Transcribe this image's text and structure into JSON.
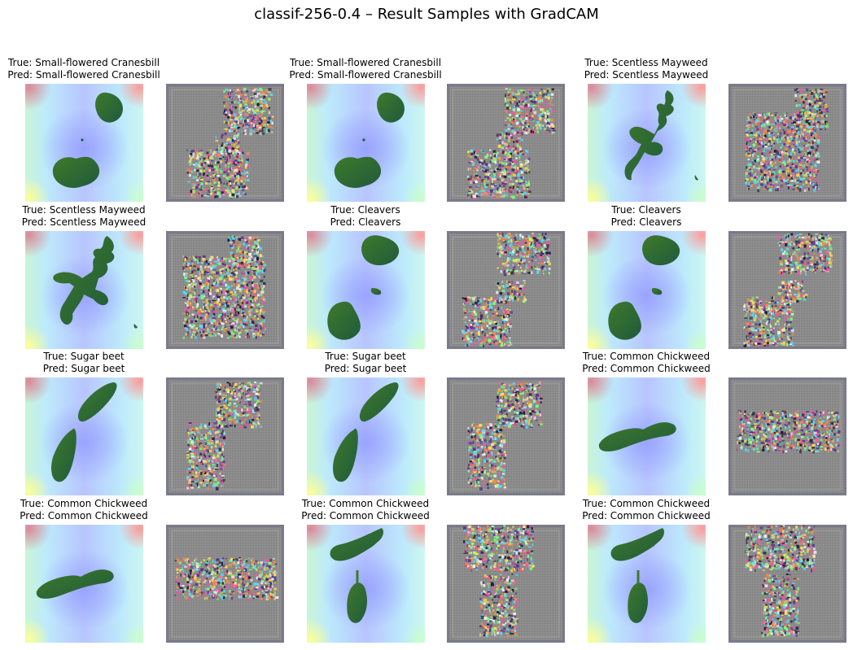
{
  "title": "classif-256-0.4 – Result Samples with GradCAM",
  "true_prefix": "True: ",
  "pred_prefix": "Pred: ",
  "samples": [
    {
      "true": "Small-flowered Cranesbill",
      "pred": "Small-flowered Cranesbill",
      "plant": "cranesbill"
    },
    {
      "true": "Small-flowered Cranesbill",
      "pred": "Small-flowered Cranesbill",
      "plant": "cranesbill"
    },
    {
      "true": "Scentless Mayweed",
      "pred": "Scentless Mayweed",
      "plant": "mayweed-a"
    },
    {
      "true": "Scentless Mayweed",
      "pred": "Scentless Mayweed",
      "plant": "mayweed-b"
    },
    {
      "true": "Cleavers",
      "pred": "Cleavers",
      "plant": "cleavers"
    },
    {
      "true": "Cleavers",
      "pred": "Cleavers",
      "plant": "cleavers"
    },
    {
      "true": "Sugar beet",
      "pred": "Sugar beet",
      "plant": "sugarbeet"
    },
    {
      "true": "Sugar beet",
      "pred": "Sugar beet",
      "plant": "sugarbeet"
    },
    {
      "true": "Common Chickweed",
      "pred": "Common Chickweed",
      "plant": "chickweed-a"
    },
    {
      "true": "Common Chickweed",
      "pred": "Common Chickweed",
      "plant": "chickweed-a"
    },
    {
      "true": "Common Chickweed",
      "pred": "Common Chickweed",
      "plant": "chickweed-b"
    },
    {
      "true": "Common Chickweed",
      "pred": "Common Chickweed",
      "plant": "chickweed-b"
    }
  ],
  "colors": {
    "leaf_dark": "#1f5a3c",
    "leaf_light": "#3f7a2a",
    "grad_gray": "#8a8a8a"
  }
}
